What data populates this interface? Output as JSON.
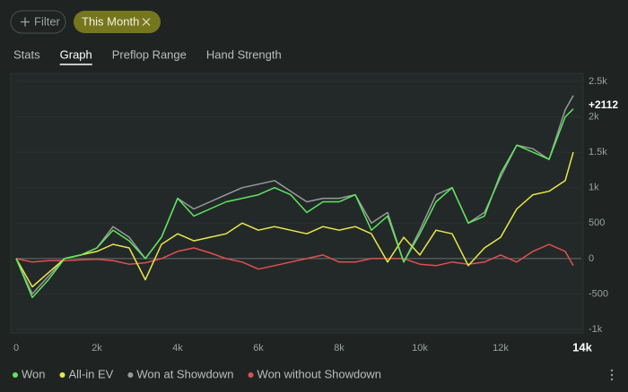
{
  "toolbar": {
    "filter": "Filter",
    "chip": "This Month"
  },
  "tabs": {
    "items": [
      "Stats",
      "Graph",
      "Preflop Range",
      "Hand Strength"
    ],
    "active": 1
  },
  "chart_data": {
    "type": "line",
    "x": [
      0,
      400,
      800,
      1200,
      1600,
      2000,
      2400,
      2800,
      3200,
      3600,
      4000,
      4400,
      4800,
      5200,
      5600,
      6000,
      6400,
      6800,
      7200,
      7600,
      8000,
      8400,
      8800,
      9200,
      9600,
      10000,
      10400,
      10800,
      11200,
      11600,
      12000,
      12400,
      12800,
      13200,
      13600,
      13800
    ],
    "series": [
      {
        "name": "Won",
        "color": "#5ee65e",
        "values": [
          0,
          -550,
          -300,
          0,
          50,
          150,
          400,
          250,
          0,
          300,
          850,
          600,
          700,
          800,
          850,
          900,
          1000,
          900,
          650,
          800,
          800,
          900,
          400,
          600,
          -50,
          350,
          800,
          1000,
          500,
          600,
          1200,
          1600,
          1500,
          1400,
          2000,
          2112
        ]
      },
      {
        "name": "All-in EV",
        "color": "#e8e84a",
        "values": [
          0,
          -400,
          -200,
          0,
          50,
          100,
          200,
          150,
          -300,
          200,
          350,
          250,
          300,
          350,
          500,
          400,
          450,
          400,
          350,
          450,
          400,
          450,
          350,
          -50,
          300,
          50,
          400,
          350,
          -100,
          150,
          300,
          700,
          900,
          950,
          1100,
          1500
        ]
      },
      {
        "name": "Won at Showdown",
        "color": "#9a9a9a",
        "values": [
          0,
          -500,
          -250,
          0,
          50,
          150,
          450,
          300,
          0,
          300,
          850,
          700,
          800,
          900,
          1000,
          1050,
          1100,
          950,
          800,
          850,
          850,
          900,
          500,
          650,
          -50,
          400,
          900,
          1000,
          500,
          650,
          1150,
          1600,
          1550,
          1400,
          2100,
          2300
        ]
      },
      {
        "name": "Won without Showdown",
        "color": "#e05050",
        "values": [
          0,
          -50,
          -30,
          -30,
          -20,
          -10,
          -30,
          -80,
          -60,
          0,
          100,
          150,
          80,
          0,
          -50,
          -150,
          -100,
          -50,
          0,
          50,
          -50,
          -50,
          0,
          0,
          0,
          -80,
          -100,
          -50,
          -80,
          -50,
          50,
          -50,
          100,
          200,
          100,
          -100
        ]
      }
    ],
    "end_label": "+2112",
    "xlim": [
      0,
      14000
    ],
    "xticks": [
      0,
      {
        "value": 2000,
        "label": "2k"
      },
      {
        "value": 4000,
        "label": "4k"
      },
      {
        "value": 6000,
        "label": "6k"
      },
      {
        "value": 8000,
        "label": "8k"
      },
      {
        "value": 10000,
        "label": "10k"
      },
      {
        "value": 12000,
        "label": "12k"
      },
      {
        "value": 14000,
        "label": "14k"
      }
    ],
    "ylim": [
      -1000,
      2500
    ],
    "yticks": [
      {
        "value": -1000,
        "label": "-1k"
      },
      -500,
      0,
      500,
      {
        "value": 1000,
        "label": "1k"
      },
      {
        "value": 1500,
        "label": "1.5k"
      },
      {
        "value": 2000,
        "label": "2k"
      },
      {
        "value": 2500,
        "label": "2.5k"
      }
    ],
    "grid": true
  }
}
